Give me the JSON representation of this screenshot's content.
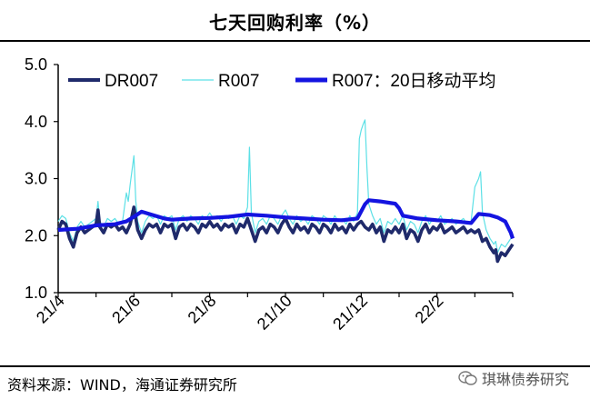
{
  "title": "七天回购利率（%）",
  "source": "资料来源：WIND，海通证券研究所",
  "watermark": "琪琳债券研究",
  "watermark_icon": "wechat-icon",
  "chart_data": {
    "type": "line",
    "title": "七天回购利率（%）",
    "xlabel": "",
    "ylabel": "",
    "ylim": [
      1.0,
      5.0
    ],
    "yticks": [
      "1.0",
      "2.0",
      "3.0",
      "4.0",
      "5.0"
    ],
    "xlim": [
      0,
      12
    ],
    "xticks": [
      "21/4",
      "21/6",
      "21/8",
      "21/10",
      "21/12",
      "22/2"
    ],
    "xtick_positions": [
      0,
      2,
      4,
      6,
      8,
      10
    ],
    "legend": [
      "DR007",
      "R007",
      "R007：20日移动平均"
    ],
    "legend_position": "top",
    "grid": false,
    "series": [
      {
        "name": "DR007",
        "color": "#1f2a6b",
        "points": [
          [
            0.0,
            2.1
          ],
          [
            0.1,
            2.25
          ],
          [
            0.2,
            2.2
          ],
          [
            0.3,
            1.95
          ],
          [
            0.4,
            1.8
          ],
          [
            0.5,
            2.05
          ],
          [
            0.6,
            2.15
          ],
          [
            0.7,
            2.05
          ],
          [
            0.8,
            2.1
          ],
          [
            0.9,
            2.15
          ],
          [
            1.0,
            2.2
          ],
          [
            1.05,
            2.45
          ],
          [
            1.1,
            2.15
          ],
          [
            1.2,
            2.05
          ],
          [
            1.3,
            2.2
          ],
          [
            1.4,
            2.15
          ],
          [
            1.5,
            2.2
          ],
          [
            1.6,
            2.1
          ],
          [
            1.7,
            2.15
          ],
          [
            1.8,
            2.05
          ],
          [
            1.9,
            2.2
          ],
          [
            2.0,
            2.5
          ],
          [
            2.05,
            2.3
          ],
          [
            2.1,
            2.1
          ],
          [
            2.2,
            1.95
          ],
          [
            2.3,
            2.1
          ],
          [
            2.4,
            2.2
          ],
          [
            2.5,
            2.15
          ],
          [
            2.6,
            2.2
          ],
          [
            2.7,
            2.05
          ],
          [
            2.8,
            2.2
          ],
          [
            2.9,
            2.15
          ],
          [
            3.0,
            2.2
          ],
          [
            3.1,
            1.95
          ],
          [
            3.2,
            2.15
          ],
          [
            3.3,
            2.2
          ],
          [
            3.4,
            2.1
          ],
          [
            3.5,
            2.2
          ],
          [
            3.6,
            2.15
          ],
          [
            3.7,
            2.05
          ],
          [
            3.8,
            2.2
          ],
          [
            3.9,
            2.15
          ],
          [
            4.0,
            2.25
          ],
          [
            4.1,
            2.15
          ],
          [
            4.2,
            2.2
          ],
          [
            4.3,
            2.1
          ],
          [
            4.4,
            2.2
          ],
          [
            4.5,
            2.15
          ],
          [
            4.6,
            2.2
          ],
          [
            4.7,
            2.05
          ],
          [
            4.8,
            2.2
          ],
          [
            4.9,
            2.15
          ],
          [
            5.0,
            2.3
          ],
          [
            5.1,
            2.1
          ],
          [
            5.2,
            1.9
          ],
          [
            5.3,
            2.1
          ],
          [
            5.4,
            2.15
          ],
          [
            5.5,
            2.05
          ],
          [
            5.6,
            2.2
          ],
          [
            5.7,
            2.15
          ],
          [
            5.8,
            2.05
          ],
          [
            5.9,
            2.2
          ],
          [
            6.0,
            2.3
          ],
          [
            6.1,
            2.15
          ],
          [
            6.2,
            2.05
          ],
          [
            6.3,
            2.2
          ],
          [
            6.4,
            2.1
          ],
          [
            6.5,
            2.15
          ],
          [
            6.6,
            2.05
          ],
          [
            6.7,
            2.2
          ],
          [
            6.8,
            2.15
          ],
          [
            6.9,
            2.05
          ],
          [
            7.0,
            2.2
          ],
          [
            7.1,
            2.15
          ],
          [
            7.2,
            2.05
          ],
          [
            7.3,
            2.2
          ],
          [
            7.4,
            2.1
          ],
          [
            7.5,
            2.15
          ],
          [
            7.6,
            2.05
          ],
          [
            7.7,
            2.2
          ],
          [
            7.8,
            2.1
          ],
          [
            7.9,
            2.2
          ],
          [
            8.0,
            2.25
          ],
          [
            8.1,
            2.15
          ],
          [
            8.2,
            2.1
          ],
          [
            8.3,
            2.2
          ],
          [
            8.4,
            2.05
          ],
          [
            8.5,
            2.15
          ],
          [
            8.6,
            1.9
          ],
          [
            8.7,
            2.1
          ],
          [
            8.8,
            2.05
          ],
          [
            8.9,
            2.15
          ],
          [
            9.0,
            2.05
          ],
          [
            9.1,
            2.2
          ],
          [
            9.2,
            1.95
          ],
          [
            9.3,
            2.1
          ],
          [
            9.4,
            2.05
          ],
          [
            9.5,
            1.9
          ],
          [
            9.6,
            2.1
          ],
          [
            9.7,
            2.2
          ],
          [
            9.8,
            2.05
          ],
          [
            9.9,
            2.15
          ],
          [
            10.0,
            2.1
          ],
          [
            10.1,
            2.2
          ],
          [
            10.2,
            2.05
          ],
          [
            10.3,
            2.1
          ],
          [
            10.4,
            2.15
          ],
          [
            10.5,
            2.05
          ],
          [
            10.6,
            2.1
          ],
          [
            10.7,
            2.15
          ],
          [
            10.8,
            2.05
          ],
          [
            10.9,
            2.1
          ],
          [
            11.0,
            2.05
          ],
          [
            11.1,
            2.1
          ],
          [
            11.2,
            1.9
          ],
          [
            11.3,
            1.95
          ],
          [
            11.4,
            1.8
          ],
          [
            11.5,
            1.7
          ],
          [
            11.55,
            1.75
          ],
          [
            11.6,
            1.55
          ],
          [
            11.7,
            1.7
          ],
          [
            11.8,
            1.65
          ],
          [
            11.9,
            1.75
          ],
          [
            12.0,
            1.85
          ]
        ]
      },
      {
        "name": "R007",
        "color": "#5ce0e6",
        "points": [
          [
            0.0,
            2.25
          ],
          [
            0.1,
            2.35
          ],
          [
            0.2,
            2.3
          ],
          [
            0.3,
            2.05
          ],
          [
            0.4,
            1.9
          ],
          [
            0.5,
            2.15
          ],
          [
            0.6,
            2.25
          ],
          [
            0.7,
            2.15
          ],
          [
            0.8,
            2.2
          ],
          [
            0.9,
            2.25
          ],
          [
            1.0,
            2.3
          ],
          [
            1.05,
            2.6
          ],
          [
            1.1,
            2.25
          ],
          [
            1.2,
            2.15
          ],
          [
            1.3,
            2.3
          ],
          [
            1.4,
            2.25
          ],
          [
            1.5,
            2.3
          ],
          [
            1.6,
            2.2
          ],
          [
            1.7,
            2.25
          ],
          [
            1.8,
            2.75
          ],
          [
            1.85,
            2.6
          ],
          [
            1.9,
            2.9
          ],
          [
            2.0,
            3.4
          ],
          [
            2.05,
            2.6
          ],
          [
            2.1,
            2.25
          ],
          [
            2.2,
            2.05
          ],
          [
            2.3,
            2.25
          ],
          [
            2.4,
            2.35
          ],
          [
            2.5,
            2.3
          ],
          [
            2.6,
            2.35
          ],
          [
            2.7,
            2.2
          ],
          [
            2.8,
            2.35
          ],
          [
            2.9,
            2.3
          ],
          [
            3.0,
            2.35
          ],
          [
            3.1,
            2.1
          ],
          [
            3.2,
            2.3
          ],
          [
            3.3,
            2.35
          ],
          [
            3.4,
            2.25
          ],
          [
            3.5,
            2.35
          ],
          [
            3.6,
            2.3
          ],
          [
            3.7,
            2.2
          ],
          [
            3.8,
            2.35
          ],
          [
            3.9,
            2.3
          ],
          [
            4.0,
            2.4
          ],
          [
            4.1,
            2.3
          ],
          [
            4.2,
            2.35
          ],
          [
            4.3,
            2.25
          ],
          [
            4.4,
            2.35
          ],
          [
            4.5,
            2.3
          ],
          [
            4.6,
            2.35
          ],
          [
            4.7,
            2.2
          ],
          [
            4.8,
            2.35
          ],
          [
            4.9,
            2.3
          ],
          [
            5.0,
            2.5
          ],
          [
            5.05,
            3.55
          ],
          [
            5.1,
            2.4
          ],
          [
            5.2,
            2.05
          ],
          [
            5.3,
            2.25
          ],
          [
            5.4,
            2.3
          ],
          [
            5.5,
            2.2
          ],
          [
            5.6,
            2.35
          ],
          [
            5.7,
            2.3
          ],
          [
            5.8,
            2.2
          ],
          [
            5.9,
            2.35
          ],
          [
            6.0,
            2.45
          ],
          [
            6.1,
            2.3
          ],
          [
            6.2,
            2.2
          ],
          [
            6.3,
            2.35
          ],
          [
            6.4,
            2.25
          ],
          [
            6.5,
            2.3
          ],
          [
            6.6,
            2.2
          ],
          [
            6.7,
            2.35
          ],
          [
            6.8,
            2.3
          ],
          [
            6.9,
            2.2
          ],
          [
            7.0,
            2.35
          ],
          [
            7.1,
            2.3
          ],
          [
            7.2,
            2.2
          ],
          [
            7.3,
            2.35
          ],
          [
            7.4,
            2.25
          ],
          [
            7.5,
            2.3
          ],
          [
            7.6,
            2.2
          ],
          [
            7.7,
            2.35
          ],
          [
            7.8,
            2.25
          ],
          [
            7.9,
            2.4
          ],
          [
            7.95,
            3.7
          ],
          [
            8.0,
            3.85
          ],
          [
            8.05,
            3.95
          ],
          [
            8.1,
            4.03
          ],
          [
            8.15,
            3.2
          ],
          [
            8.2,
            2.55
          ],
          [
            8.3,
            2.35
          ],
          [
            8.4,
            2.2
          ],
          [
            8.5,
            2.3
          ],
          [
            8.6,
            2.05
          ],
          [
            8.7,
            2.25
          ],
          [
            8.8,
            2.2
          ],
          [
            8.9,
            2.3
          ],
          [
            9.0,
            2.2
          ],
          [
            9.1,
            2.35
          ],
          [
            9.2,
            2.1
          ],
          [
            9.3,
            2.25
          ],
          [
            9.4,
            2.2
          ],
          [
            9.5,
            2.05
          ],
          [
            9.6,
            2.25
          ],
          [
            9.7,
            2.35
          ],
          [
            9.8,
            2.2
          ],
          [
            9.9,
            2.3
          ],
          [
            10.0,
            2.25
          ],
          [
            10.1,
            2.35
          ],
          [
            10.2,
            2.2
          ],
          [
            10.3,
            2.25
          ],
          [
            10.4,
            2.3
          ],
          [
            10.5,
            2.2
          ],
          [
            10.6,
            2.25
          ],
          [
            10.7,
            2.3
          ],
          [
            10.8,
            2.2
          ],
          [
            10.9,
            2.25
          ],
          [
            11.0,
            2.85
          ],
          [
            11.1,
            3.0
          ],
          [
            11.15,
            3.12
          ],
          [
            11.2,
            2.4
          ],
          [
            11.3,
            2.1
          ],
          [
            11.4,
            1.95
          ],
          [
            11.5,
            1.85
          ],
          [
            11.55,
            1.9
          ],
          [
            11.6,
            1.7
          ],
          [
            11.7,
            1.85
          ],
          [
            11.8,
            1.8
          ],
          [
            11.9,
            1.9
          ],
          [
            12.0,
            2.0
          ]
        ]
      },
      {
        "name": "R007：20日移动平均",
        "color": "#1414e0",
        "points": [
          [
            0.0,
            2.1
          ],
          [
            0.5,
            2.12
          ],
          [
            1.0,
            2.18
          ],
          [
            1.5,
            2.2
          ],
          [
            1.8,
            2.25
          ],
          [
            2.0,
            2.33
          ],
          [
            2.2,
            2.42
          ],
          [
            2.4,
            2.38
          ],
          [
            2.8,
            2.3
          ],
          [
            3.0,
            2.28
          ],
          [
            3.5,
            2.3
          ],
          [
            4.0,
            2.31
          ],
          [
            4.5,
            2.33
          ],
          [
            5.0,
            2.37
          ],
          [
            5.5,
            2.35
          ],
          [
            6.0,
            2.32
          ],
          [
            6.5,
            2.3
          ],
          [
            7.0,
            2.28
          ],
          [
            7.5,
            2.27
          ],
          [
            7.9,
            2.3
          ],
          [
            8.1,
            2.55
          ],
          [
            8.2,
            2.62
          ],
          [
            8.5,
            2.6
          ],
          [
            8.8,
            2.57
          ],
          [
            8.9,
            2.56
          ],
          [
            9.0,
            2.48
          ],
          [
            9.1,
            2.35
          ],
          [
            9.5,
            2.3
          ],
          [
            10.0,
            2.27
          ],
          [
            10.5,
            2.25
          ],
          [
            10.9,
            2.22
          ],
          [
            11.0,
            2.3
          ],
          [
            11.1,
            2.38
          ],
          [
            11.4,
            2.36
          ],
          [
            11.6,
            2.32
          ],
          [
            11.8,
            2.25
          ],
          [
            11.95,
            2.05
          ],
          [
            12.0,
            1.95
          ]
        ]
      }
    ]
  }
}
